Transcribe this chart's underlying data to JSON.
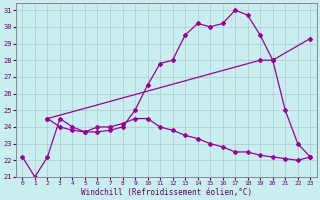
{
  "xlabel": "Windchill (Refroidissement éolien,°C)",
  "bg_color": "#c8eef0",
  "line_color": "#990099",
  "grid_color": "#b0c8d0",
  "xlim": [
    -0.5,
    23.5
  ],
  "ylim": [
    21,
    31.4
  ],
  "xticks": [
    0,
    1,
    2,
    3,
    4,
    5,
    6,
    7,
    8,
    9,
    10,
    11,
    12,
    13,
    14,
    15,
    16,
    17,
    18,
    19,
    20,
    21,
    22,
    23
  ],
  "yticks": [
    21,
    22,
    23,
    24,
    25,
    26,
    27,
    28,
    29,
    30,
    31
  ],
  "line1_x": [
    0,
    1,
    2,
    3,
    4,
    5,
    6,
    7,
    8,
    9,
    10,
    11,
    12,
    13,
    14,
    15,
    16,
    17,
    18,
    19,
    20,
    21,
    22,
    23
  ],
  "line1_y": [
    22.2,
    21.0,
    22.2,
    24.5,
    24.0,
    23.7,
    23.7,
    23.8,
    24.0,
    25.0,
    26.5,
    27.8,
    28.0,
    29.5,
    30.2,
    30.0,
    30.2,
    31.0,
    30.7,
    29.5,
    28.0,
    25.0,
    23.0,
    22.2
  ],
  "line2_x": [
    2,
    3,
    4,
    5,
    6,
    7,
    8,
    9,
    10,
    11,
    12,
    13,
    14,
    15,
    16,
    17,
    18,
    19,
    20,
    21,
    22,
    23
  ],
  "line2_y": [
    24.5,
    24.0,
    23.8,
    23.7,
    24.0,
    24.0,
    24.2,
    24.5,
    24.5,
    24.0,
    23.8,
    23.5,
    23.3,
    23.0,
    22.8,
    22.5,
    22.5,
    22.3,
    22.2,
    22.1,
    22.0,
    22.2
  ],
  "line3_x": [
    2,
    19,
    20,
    23
  ],
  "line3_y": [
    24.5,
    28.0,
    28.0,
    29.3
  ]
}
